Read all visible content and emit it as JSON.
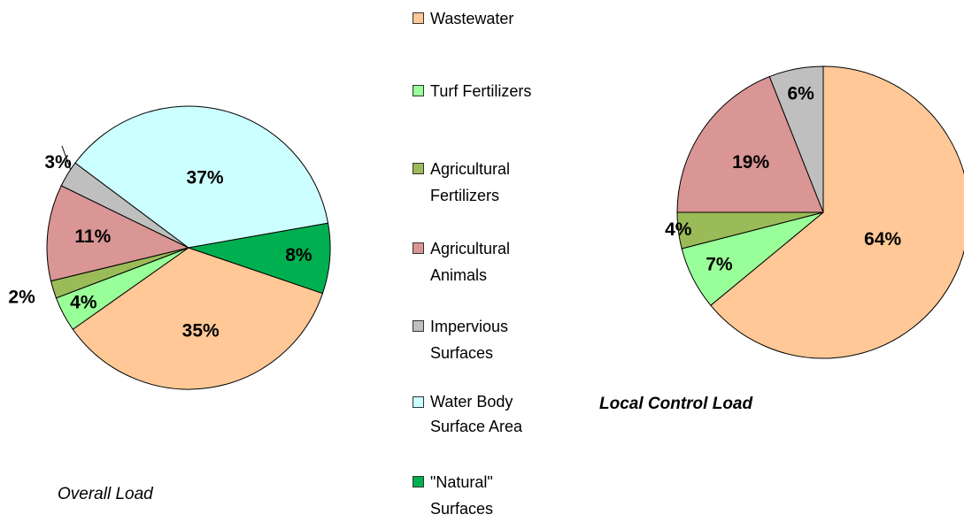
{
  "chart_data": [
    {
      "type": "pie",
      "title": "Overall Load",
      "categories": [
        "Wastewater",
        "Turf Fertilizers",
        "Agricultural Fertilizers",
        "Agricultural Animals",
        "Impervious Surfaces",
        "Water Body Surface Area",
        "\"Natural\" Surfaces"
      ],
      "values": [
        35,
        4,
        2,
        11,
        3,
        37,
        8
      ],
      "value_labels": [
        "35%",
        "4%",
        "2%",
        "11%",
        "3%",
        "37%",
        "8%"
      ],
      "colors": [
        "#FFC896",
        "#99FF99",
        "#9BBB59",
        "#D99694",
        "#BFBFBF",
        "#CCFFFF",
        "#00B050"
      ]
    },
    {
      "type": "pie",
      "title": "Local Control Load",
      "values": [
        64,
        7,
        4,
        19,
        6
      ],
      "value_labels": [
        "64%",
        "7%",
        "4%",
        "19%",
        "6%"
      ],
      "colors": [
        "#FFC896",
        "#99FF99",
        "#9BBB59",
        "#D99694",
        "#BFBFBF"
      ]
    }
  ]
}
